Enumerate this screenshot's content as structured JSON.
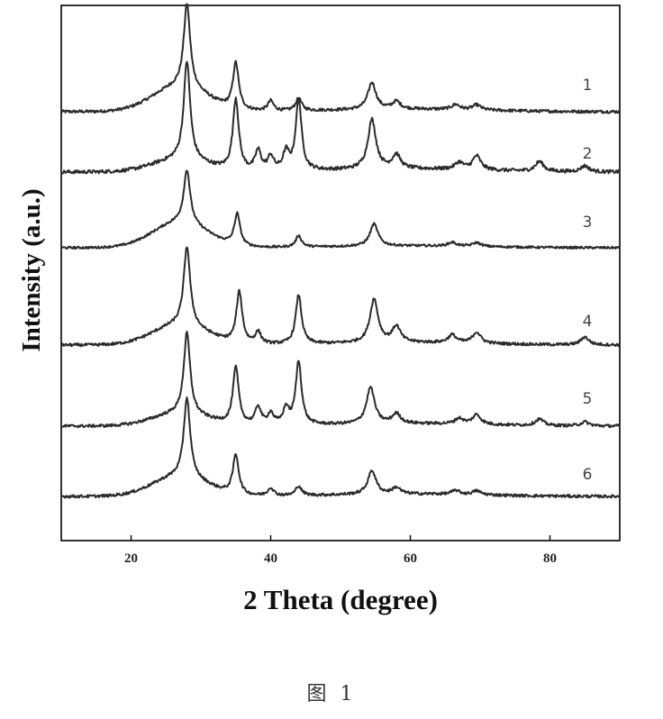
{
  "chart_data": {
    "type": "line",
    "xlabel": "2 Theta (degree)",
    "ylabel": "Intensity (a.u.)",
    "xlim": [
      10,
      90
    ],
    "x_ticks": [
      20,
      40,
      60,
      80
    ],
    "y_ticks_labeled": false,
    "grid": false,
    "legend": "none",
    "stacked_offset": true,
    "series": [
      {
        "name": "1",
        "peaks": [
          [
            28.0,
            1.0
          ],
          [
            35.0,
            0.55
          ],
          [
            40.0,
            0.12
          ],
          [
            44.0,
            0.15
          ],
          [
            54.5,
            0.32
          ],
          [
            58.0,
            0.09
          ],
          [
            66.5,
            0.06
          ],
          [
            69.5,
            0.06
          ]
        ],
        "broad_hump": 0.3
      },
      {
        "name": "2",
        "peaks": [
          [
            28.0,
            1.0
          ],
          [
            35.0,
            0.72
          ],
          [
            38.2,
            0.2
          ],
          [
            40.0,
            0.14
          ],
          [
            42.2,
            0.18
          ],
          [
            44.0,
            0.72
          ],
          [
            54.5,
            0.5
          ],
          [
            58.0,
            0.14
          ],
          [
            67.0,
            0.07
          ],
          [
            69.5,
            0.14
          ],
          [
            78.5,
            0.1
          ],
          [
            85.0,
            0.06
          ]
        ],
        "broad_hump": 0.12
      },
      {
        "name": "3",
        "peaks": [
          [
            28.0,
            0.85
          ],
          [
            35.2,
            0.5
          ],
          [
            44.0,
            0.18
          ],
          [
            54.8,
            0.35
          ],
          [
            66.0,
            0.06
          ],
          [
            69.5,
            0.06
          ]
        ],
        "broad_hump": 0.4
      },
      {
        "name": "4",
        "peaks": [
          [
            28.0,
            1.0
          ],
          [
            35.5,
            0.65
          ],
          [
            38.2,
            0.15
          ],
          [
            44.0,
            0.62
          ],
          [
            54.8,
            0.55
          ],
          [
            58.0,
            0.2
          ],
          [
            66.0,
            0.1
          ],
          [
            69.5,
            0.14
          ],
          [
            85.0,
            0.1
          ]
        ],
        "broad_hump": 0.25
      },
      {
        "name": "5",
        "peaks": [
          [
            28.0,
            1.0
          ],
          [
            35.0,
            0.7
          ],
          [
            38.2,
            0.22
          ],
          [
            40.0,
            0.14
          ],
          [
            42.2,
            0.2
          ],
          [
            44.0,
            0.78
          ],
          [
            54.3,
            0.45
          ],
          [
            58.0,
            0.12
          ],
          [
            67.0,
            0.07
          ],
          [
            69.5,
            0.12
          ],
          [
            78.5,
            0.08
          ],
          [
            85.0,
            0.05
          ]
        ],
        "broad_hump": 0.15
      },
      {
        "name": "6",
        "peaks": [
          [
            28.0,
            1.0
          ],
          [
            35.0,
            0.5
          ],
          [
            40.0,
            0.1
          ],
          [
            44.0,
            0.12
          ],
          [
            54.5,
            0.3
          ],
          [
            58.0,
            0.08
          ],
          [
            66.5,
            0.05
          ],
          [
            69.5,
            0.05
          ]
        ],
        "broad_hump": 0.25
      }
    ]
  },
  "caption": "图 1",
  "colors": {
    "line": "#2b2b2b",
    "axis": "#000000",
    "label": "#444444"
  }
}
